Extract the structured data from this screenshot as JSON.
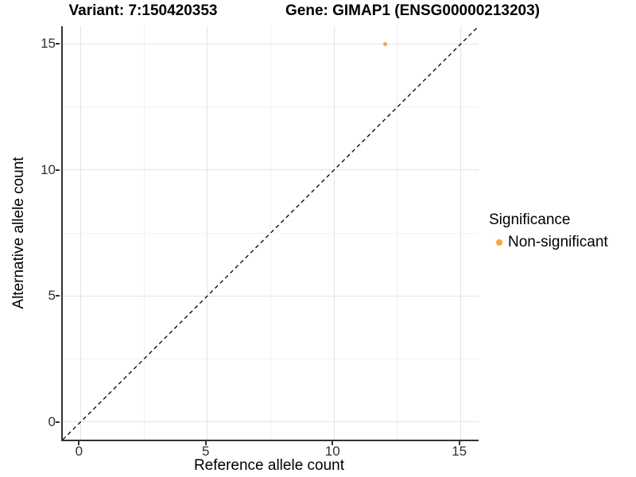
{
  "titles": {
    "left": "Variant: 7:150420353",
    "right": "Gene: GIMAP1 (ENSG00000213203)"
  },
  "chart_data": {
    "type": "scatter",
    "xlabel": "Reference allele count",
    "ylabel": "Alternative allele count",
    "xlim": [
      -0.7,
      15.7
    ],
    "ylim": [
      -0.7,
      15.7
    ],
    "xticks": [
      0,
      5,
      10,
      15
    ],
    "yticks": [
      0,
      5,
      10,
      15
    ],
    "x_minor": [
      2.5,
      7.5,
      12.5
    ],
    "y_minor": [
      2.5,
      7.5,
      12.5
    ],
    "grid": "major+minor on white background",
    "identity_line": {
      "style": "dashed",
      "color": "#000000",
      "equation": "y = x"
    },
    "series": [
      {
        "name": "Non-significant",
        "color": "#FAA43A",
        "points": [
          {
            "x": 12,
            "y": 15
          }
        ]
      }
    ],
    "legend": {
      "title": "Significance",
      "position": "right",
      "items": [
        {
          "label": "Non-significant",
          "color": "#FAA43A"
        }
      ]
    }
  },
  "colors": {
    "axis_line": "#333333",
    "tick_text": "#303030",
    "grid_major": "#E4E4E4",
    "grid_minor": "#F1F1F1",
    "background": "#FFFFFF"
  }
}
